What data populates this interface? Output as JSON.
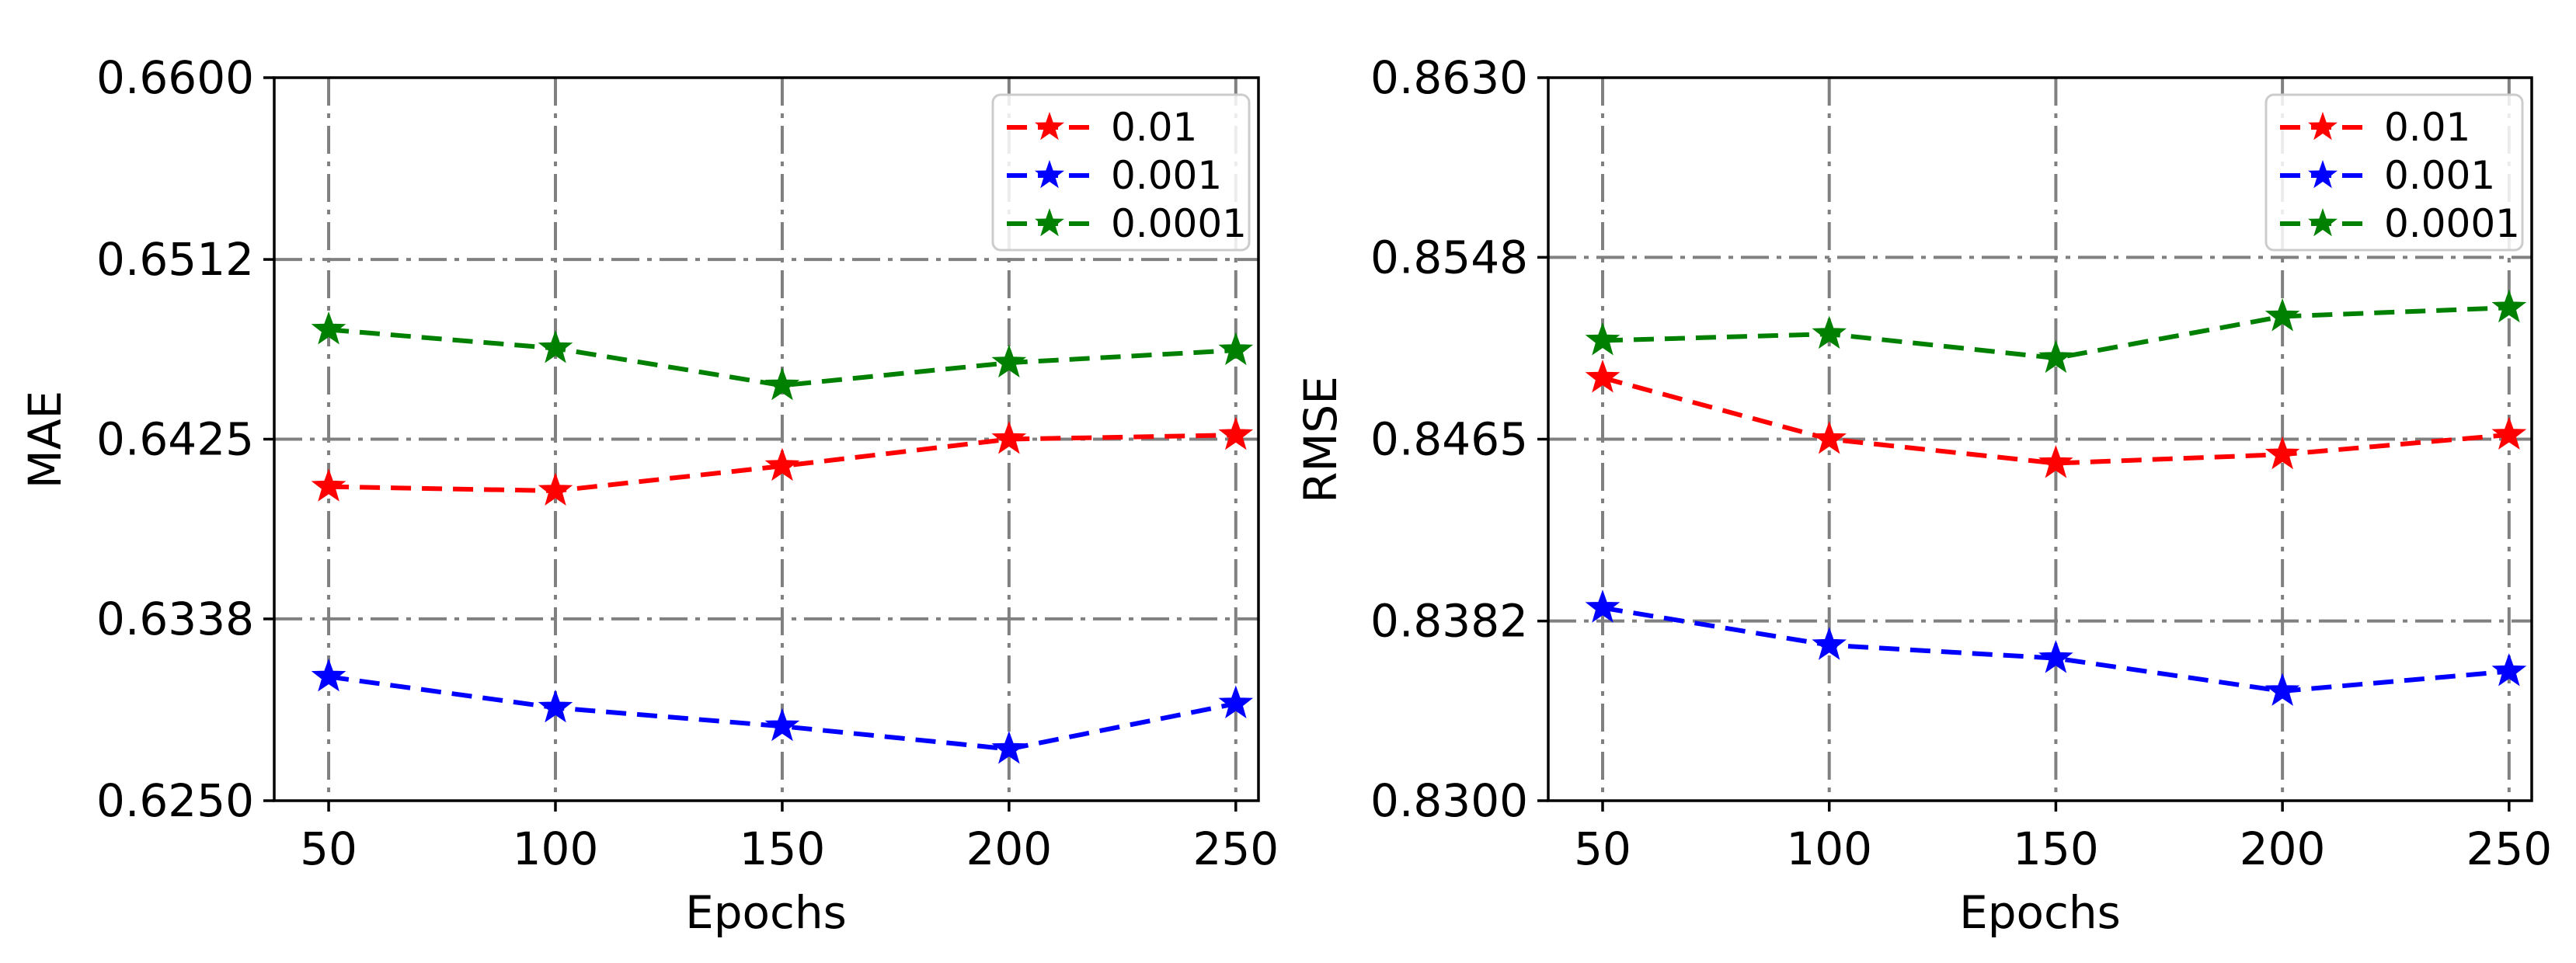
{
  "colors": {
    "0.01": "#ff0000",
    "0.001": "#0000ff",
    "0.0001": "#008000"
  },
  "chart_data": [
    {
      "type": "line",
      "title": "",
      "xlabel": "Epochs",
      "ylabel": "MAE",
      "x": [
        50,
        100,
        150,
        200,
        250
      ],
      "xtick_labels": [
        "50",
        "100",
        "150",
        "200",
        "250"
      ],
      "xlim": [
        38,
        255
      ],
      "ylim": [
        0.625,
        0.66
      ],
      "ytick_labels": [
        "0.6600",
        "0.6512",
        "0.6425",
        "0.6338",
        "0.6250"
      ],
      "yticks": [
        0.66,
        0.6512,
        0.6425,
        0.6338,
        0.625
      ],
      "grid": true,
      "legend_position": "top-right",
      "series": [
        {
          "name": "0.01",
          "color": "#ff0000",
          "values": [
            0.6402,
            0.64,
            0.6412,
            0.6425,
            0.6427
          ]
        },
        {
          "name": "0.001",
          "color": "#0000ff",
          "values": [
            0.631,
            0.6295,
            0.6286,
            0.6275,
            0.6297
          ]
        },
        {
          "name": "0.0001",
          "color": "#008000",
          "values": [
            0.6478,
            0.6469,
            0.6451,
            0.6462,
            0.6468
          ]
        }
      ]
    },
    {
      "type": "line",
      "title": "",
      "xlabel": "Epochs",
      "ylabel": "RMSE",
      "x": [
        50,
        100,
        150,
        200,
        250
      ],
      "xtick_labels": [
        "50",
        "100",
        "150",
        "200",
        "250"
      ],
      "xlim": [
        38,
        255
      ],
      "ylim": [
        0.83,
        0.863
      ],
      "ytick_labels": [
        "0.8630",
        "0.8548",
        "0.8465",
        "0.8382",
        "0.8300"
      ],
      "yticks": [
        0.863,
        0.8548,
        0.8465,
        0.8382,
        0.83
      ],
      "grid": true,
      "legend_position": "top-right",
      "series": [
        {
          "name": "0.01",
          "color": "#ff0000",
          "values": [
            0.8493,
            0.8465,
            0.8454,
            0.8458,
            0.8467
          ]
        },
        {
          "name": "0.001",
          "color": "#0000ff",
          "values": [
            0.8388,
            0.8371,
            0.8365,
            0.835,
            0.8359
          ]
        },
        {
          "name": "0.0001",
          "color": "#008000",
          "values": [
            0.851,
            0.8513,
            0.8502,
            0.8521,
            0.8525
          ]
        }
      ]
    }
  ]
}
